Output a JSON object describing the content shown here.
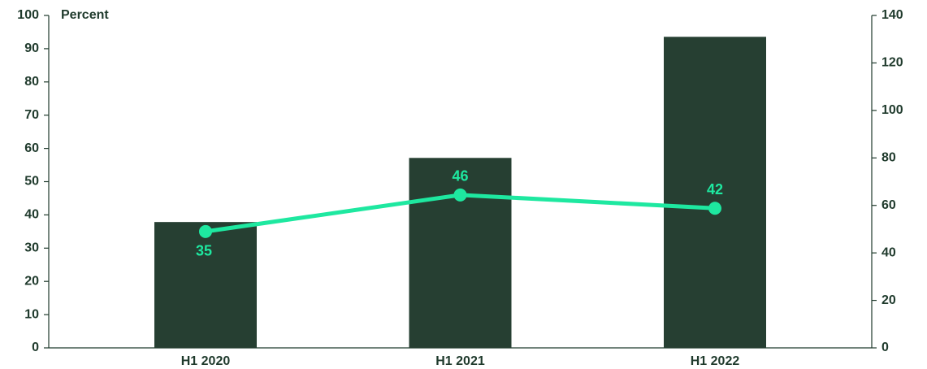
{
  "chart_data": {
    "type": "bar-line",
    "y_label": "Percent",
    "categories": [
      "H1 2020",
      "H1 2021",
      "H1 2022"
    ],
    "series": [
      {
        "type": "bar",
        "axis": "y2",
        "color": "#263f32",
        "values": [
          53,
          80,
          131
        ]
      },
      {
        "type": "line",
        "axis": "y",
        "color": "#1ee8a0",
        "values": [
          35,
          46,
          42
        ]
      }
    ],
    "ylim": [
      0,
      100
    ],
    "yticks": [
      0,
      10,
      20,
      30,
      40,
      50,
      60,
      70,
      80,
      90,
      100
    ],
    "y2lim": [
      0,
      140
    ],
    "y2ticks": [
      0,
      20,
      40,
      60,
      80,
      100,
      120,
      140
    ],
    "grid": false
  }
}
